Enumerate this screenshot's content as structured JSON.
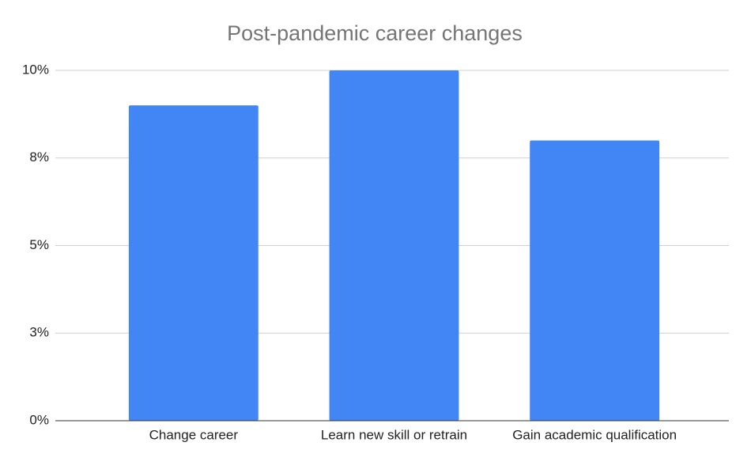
{
  "chart_data": {
    "type": "bar",
    "title": "Post-pandemic career changes",
    "categories": [
      "Change career",
      "Learn new skill or retrain",
      "Gain academic qualification"
    ],
    "values": [
      9.0,
      10.0,
      8.0
    ],
    "color": "#4285f4",
    "ylim": [
      0,
      10
    ],
    "yticks": [
      {
        "value": 0,
        "label": "0%"
      },
      {
        "value": 2.5,
        "label": "3%"
      },
      {
        "value": 5,
        "label": "5%"
      },
      {
        "value": 7.5,
        "label": "8%"
      },
      {
        "value": 10,
        "label": "10%"
      }
    ],
    "grid": true
  }
}
